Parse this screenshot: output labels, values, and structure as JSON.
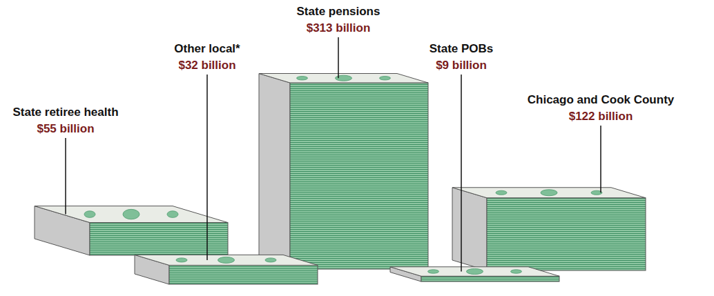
{
  "chart_data": {
    "type": "bar",
    "categories": [
      "State retiree health",
      "Other local*",
      "State pensions",
      "State POBs",
      "Chicago and Cook County"
    ],
    "values": [
      55,
      32,
      313,
      9,
      122
    ],
    "value_labels": [
      "$55 billion",
      "$32 billion",
      "$313 billion",
      "$9 billion",
      "$122 billion"
    ],
    "data_labels": true,
    "tick_labels": false,
    "color": "#8cc6a1"
  }
}
